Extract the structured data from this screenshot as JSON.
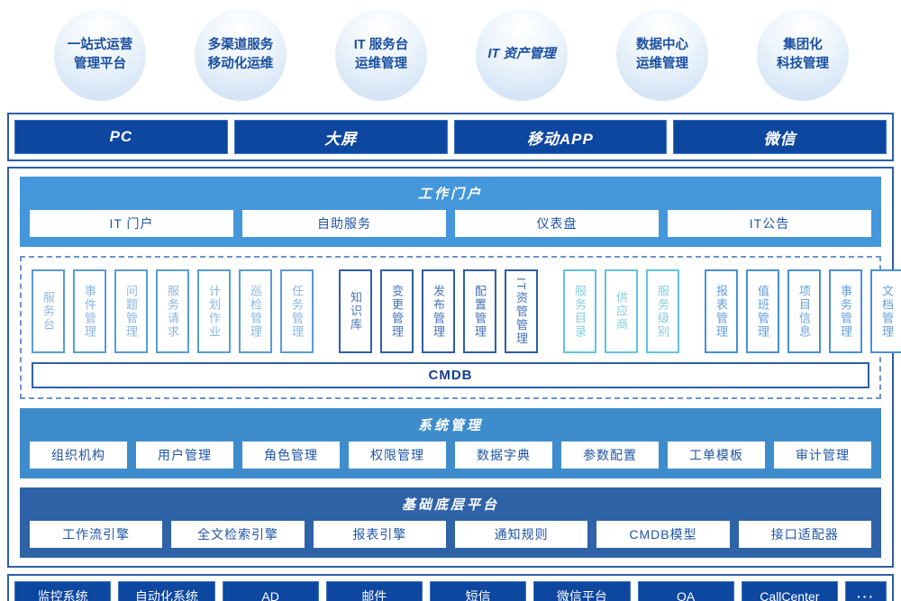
{
  "bubbles": [
    {
      "line1": "一站式运营",
      "line2": "管理平台"
    },
    {
      "line1": "多渠道服务",
      "line2": "移动化运维"
    },
    {
      "line1": "IT 服务台",
      "line2": "运维管理"
    },
    {
      "line1": "IT 资产管理",
      "line2": ""
    },
    {
      "line1": "数据中心",
      "line2": "运维管理"
    },
    {
      "line1": "集团化",
      "line2": "科技管理"
    }
  ],
  "channels": {
    "items": [
      "PC",
      "大屏",
      "移动APP",
      "微信"
    ]
  },
  "portal": {
    "title": "工作门户",
    "items": [
      "IT 门户",
      "自助服务",
      "仪表盘",
      "IT公告"
    ]
  },
  "modules": {
    "group1": [
      "服务台",
      "事件管理",
      "问题管理",
      "服务请求",
      "计划作业",
      "巡检管理",
      "任务管理"
    ],
    "group2": [
      "知识库",
      "变更管理",
      "发布管理",
      "配置管理",
      "IT资管管理"
    ],
    "group3": [
      "服务目录",
      "供应商",
      "服务级别"
    ],
    "group4": [
      "报表管理",
      "值班管理",
      "项目信息",
      "事务管理",
      "文档管理"
    ],
    "cmdb": "CMDB"
  },
  "system": {
    "title": "系统管理",
    "items": [
      "组织机构",
      "用户管理",
      "角色管理",
      "权限管理",
      "数据字典",
      "参数配置",
      "工单模板",
      "审计管理"
    ]
  },
  "platform": {
    "title": "基础底层平台",
    "items": [
      "工作流引擎",
      "全文检索引擎",
      "报表引擎",
      "通知规则",
      "CMDB模型",
      "接口适配器"
    ]
  },
  "integrations": {
    "items": [
      "监控系统",
      "自动化系统",
      "AD",
      "邮件",
      "短信",
      "微信平台",
      "OA",
      "CallCenter",
      "···"
    ]
  },
  "colors": {
    "navy_bar": "#0e47a0",
    "outer_border": "#2e5ea6",
    "portal_band": "#4497da",
    "system_band": "#3e8ccb",
    "platform_band": "#2f63a8",
    "dashed_border": "#6a93cc",
    "bubble_text": "#1a4fa0",
    "button_text": "#1f55a5",
    "group1_accent": "#5b9bd5",
    "group2_accent": "#2f5fa8",
    "group3_accent": "#63c3dc",
    "group4_accent": "#4a90d9"
  }
}
